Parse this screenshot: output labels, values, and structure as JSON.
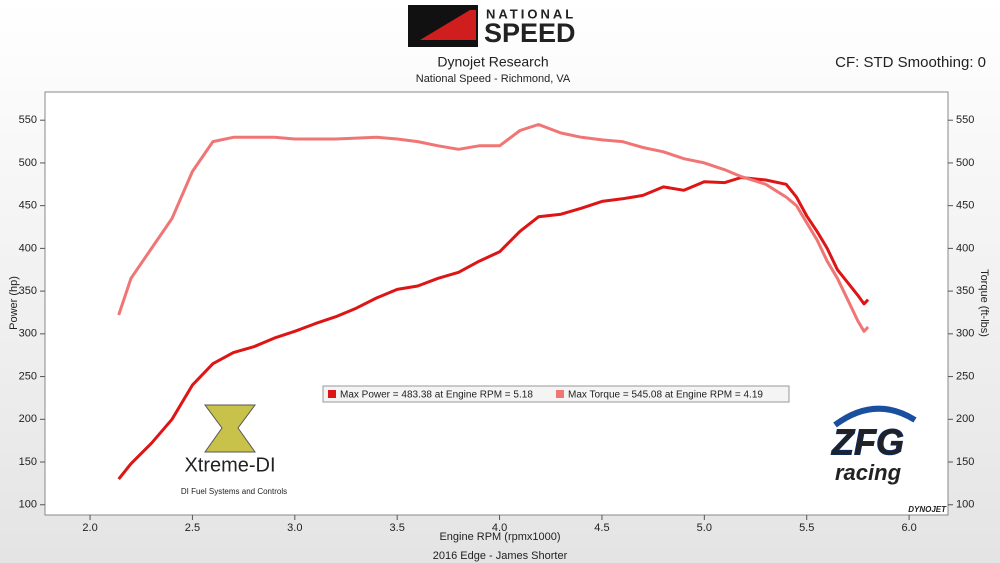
{
  "chart_data": {
    "type": "line",
    "title": "Dynojet Research",
    "subtitle": "National Speed - Richmond, VA",
    "settings_label": "CF: STD Smoothing: 0",
    "x_label": "Engine RPM (rpmx1000)",
    "y_label": "Power (hp)",
    "y2_label": "Torque (ft-lbs)",
    "footer": "2016 Edge - James Shorter",
    "annotations": [
      "NATIONAL",
      "SPEED",
      "Xtreme-DI",
      "DI Fuel Systems and Controls",
      "ZFG",
      "racing",
      "DYNOJET"
    ],
    "x": [
      2.14,
      2.2,
      2.3,
      2.4,
      2.5,
      2.6,
      2.7,
      2.8,
      2.9,
      3.0,
      3.1,
      3.2,
      3.3,
      3.4,
      3.5,
      3.6,
      3.7,
      3.8,
      3.9,
      4.0,
      4.1,
      4.19,
      4.3,
      4.4,
      4.5,
      4.6,
      4.7,
      4.8,
      4.9,
      5.0,
      5.1,
      5.18,
      5.3,
      5.4,
      5.45,
      5.5,
      5.55,
      5.6,
      5.65,
      5.7,
      5.75,
      5.78,
      5.8
    ],
    "series": [
      {
        "name": "Max Power = 483.38 at Engine RPM = 5.18",
        "color": "#dd1515",
        "values": [
          130,
          148,
          172,
          200,
          240,
          265,
          278,
          285,
          295,
          303,
          312,
          320,
          330,
          342,
          352,
          356,
          365,
          372,
          385,
          396,
          420,
          437,
          440,
          447,
          455,
          458,
          462,
          472,
          468,
          478,
          477,
          483,
          480,
          475,
          460,
          438,
          420,
          400,
          375,
          360,
          345,
          335,
          340
        ]
      },
      {
        "name": "Max Torque = 545.08 at Engine RPM = 4.19",
        "color": "#f07575",
        "axis": "y2",
        "values": [
          322,
          365,
          400,
          435,
          490,
          525,
          530,
          530,
          530,
          528,
          528,
          528,
          529,
          530,
          528,
          525,
          520,
          516,
          520,
          520,
          538,
          545,
          535,
          530,
          527,
          525,
          518,
          513,
          505,
          500,
          492,
          484,
          475,
          460,
          450,
          430,
          410,
          385,
          365,
          340,
          315,
          303,
          308
        ]
      }
    ],
    "xlim": [
      1.78,
      6.19
    ],
    "xticks": [
      {
        "value": 2,
        "label": "2.0"
      },
      2.5,
      {
        "value": 3,
        "label": "3.0"
      },
      3.5,
      {
        "value": 4,
        "label": "4.0"
      },
      4.5,
      {
        "value": 5,
        "label": "5.0"
      },
      5.5,
      {
        "value": 6,
        "label": "6.0"
      }
    ],
    "ylim": [
      88,
      583
    ],
    "yticks": [
      100,
      150,
      200,
      250,
      300,
      350,
      400,
      450,
      500,
      550
    ],
    "y2lim": [
      88,
      583
    ],
    "y2ticks": [
      100,
      150,
      200,
      250,
      300,
      350,
      400,
      450,
      500,
      550
    ],
    "grid": false
  }
}
